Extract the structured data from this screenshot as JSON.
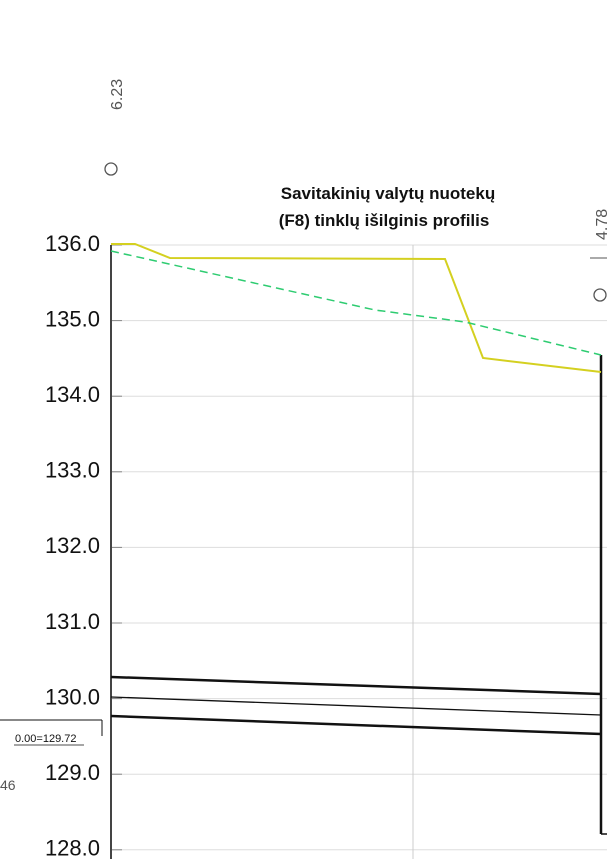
{
  "header": {
    "title_lines": [
      "Savitakinių valytų nuotekų",
      "(F8) tinklų išilginis profilis"
    ]
  },
  "station_labels": [
    "6.23",
    "4.78"
  ],
  "elevation_labels": [
    "136.0",
    "135.0",
    "134.0",
    "133.0",
    "132.0",
    "131.0",
    "130.0",
    "129.0",
    "128.0"
  ],
  "datum_label": "0.00=129.72",
  "edge_label": "46"
}
